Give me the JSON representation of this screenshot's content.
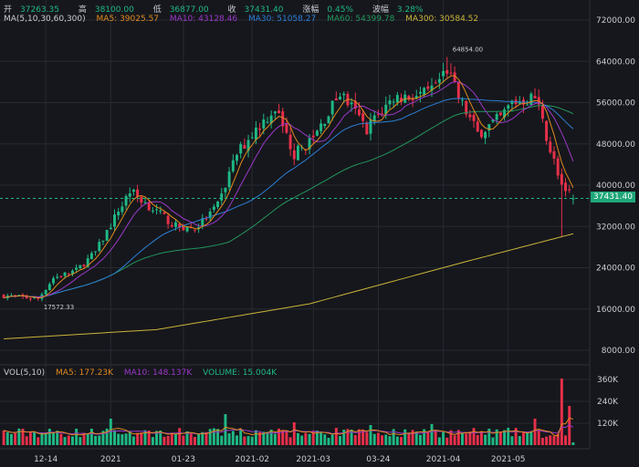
{
  "header": {
    "open_label": "开",
    "open": "37263.35",
    "high_label": "高",
    "high": "38100.00",
    "low_label": "低",
    "low": "36877.00",
    "close_label": "收",
    "close": "37431.40",
    "change_label": "涨幅",
    "change": "0.45%",
    "amplitude_label": "波幅",
    "amplitude": "3.28%"
  },
  "ma_legend": {
    "title": "MA(5,10,30,60,300)",
    "ma5": "MA5: 39025.57",
    "ma10": "MA10: 43128.46",
    "ma30": "MA30: 51058.27",
    "ma60": "MA60: 54399.78",
    "ma300": "MA300: 30584.52"
  },
  "vol_legend": {
    "title": "VOL(5,10)",
    "ma5": "MA5: 177.23K",
    "ma10": "MA10: 148.137K",
    "volume": "VOLUME: 15.004K"
  },
  "price_tag": "37431.40",
  "high_marker": "64854.00",
  "low_marker": "17572.33",
  "colors": {
    "up": "#1fb884",
    "down": "#e8304a",
    "ma5": "#e08a1e",
    "ma10": "#9b38c9",
    "ma30": "#2b7fd6",
    "ma60": "#23965e",
    "ma300": "#c9b43a",
    "grid": "#262a33",
    "bg": "#16171c"
  },
  "chart_data": {
    "type": "candlestick",
    "candle_count": 150,
    "price_path": [
      [
        0,
        18600
      ],
      [
        9,
        18000
      ],
      [
        13,
        22000
      ],
      [
        19,
        23500
      ],
      [
        24,
        27000
      ],
      [
        33,
        39000
      ],
      [
        38,
        36000
      ],
      [
        45,
        32000
      ],
      [
        50,
        31500
      ],
      [
        56,
        36000
      ],
      [
        61,
        46000
      ],
      [
        65,
        50000
      ],
      [
        71,
        55000
      ],
      [
        76,
        46000
      ],
      [
        81,
        49000
      ],
      [
        88,
        58000
      ],
      [
        95,
        51000
      ],
      [
        102,
        57000
      ],
      [
        111,
        57500
      ],
      [
        116,
        62500
      ],
      [
        119,
        57000
      ],
      [
        124,
        50000
      ],
      [
        130,
        53000
      ],
      [
        133,
        56000
      ],
      [
        139,
        57000
      ],
      [
        143,
        47000
      ],
      [
        146,
        40000
      ],
      [
        149,
        37431
      ]
    ],
    "ma300_path": [
      [
        0,
        10200
      ],
      [
        40,
        12000
      ],
      [
        80,
        17000
      ],
      [
        120,
        25000
      ],
      [
        149,
        30584
      ]
    ],
    "volume_spikes": [
      [
        28,
        145000
      ],
      [
        58,
        170000
      ],
      [
        76,
        125000
      ],
      [
        96,
        110000
      ],
      [
        112,
        115000
      ],
      [
        139,
        145000
      ],
      [
        146,
        365000
      ],
      [
        148,
        215000
      ],
      [
        149,
        15000
      ]
    ],
    "y_ticks": [
      "72000.00",
      "64000.00",
      "56000.00",
      "48000.00",
      "40000.00",
      "32000.00",
      "24000.00",
      "16000.00",
      "8000.00"
    ],
    "y_range": [
      4000,
      76000
    ],
    "vol_ticks": [
      "360K",
      "240K",
      "120K"
    ],
    "vol_range": [
      0,
      380000
    ],
    "x_ticks": [
      {
        "label": "12-14",
        "i": 11
      },
      {
        "label": "2021",
        "i": 28
      },
      {
        "label": "01-23",
        "i": 47
      },
      {
        "label": "2021-02",
        "i": 65
      },
      {
        "label": "2021-03",
        "i": 81
      },
      {
        "label": "03-24",
        "i": 98
      },
      {
        "label": "2021-04",
        "i": 115
      },
      {
        "label": "2021-05",
        "i": 132
      }
    ]
  }
}
